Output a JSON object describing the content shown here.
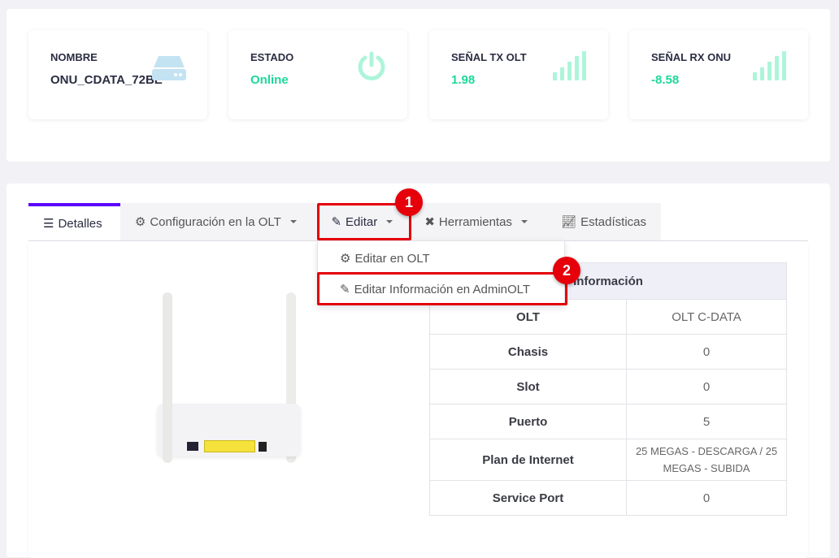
{
  "cards": [
    {
      "label": "NOMBRE",
      "value": "ONU_CDATA_72BE",
      "icon": "server-icon"
    },
    {
      "label": "ESTADO",
      "value": "Online",
      "icon": "power-icon"
    },
    {
      "label": "SEÑAL TX OLT",
      "value": "1.98",
      "icon": "signal-icon"
    },
    {
      "label": "SEÑAL RX ONU",
      "value": "-8.58",
      "icon": "signal-icon"
    }
  ],
  "tabs": [
    {
      "label": "Detalles",
      "icon": "list-icon"
    },
    {
      "label": "Configuración en la OLT",
      "icon": "gear-icon"
    },
    {
      "label": "Editar",
      "icon": "edit-icon"
    },
    {
      "label": "Herramientas",
      "icon": "tools-icon"
    },
    {
      "label": "Estadísticas",
      "icon": "chart-line-icon"
    }
  ],
  "dropdown": [
    {
      "label": "Editar en OLT",
      "icon": "gears-icon"
    },
    {
      "label": "Editar Información en AdminOLT",
      "icon": "edit-icon"
    }
  ],
  "badges": [
    "1",
    "2"
  ],
  "table": {
    "header": "Información",
    "rows": [
      {
        "key": "OLT",
        "value": "OLT C-DATA"
      },
      {
        "key": "Chasis",
        "value": "0"
      },
      {
        "key": "Slot",
        "value": "0"
      },
      {
        "key": "Puerto",
        "value": "5"
      },
      {
        "key": "Plan de Internet",
        "value": "25 MEGAS - DESCARGA / 25 MEGAS - SUBIDA"
      },
      {
        "key": "Service Port",
        "value": "0"
      }
    ]
  },
  "colors": {
    "accent": "#5b00ff",
    "online": "#1dd99a",
    "annotation": "#e5000a"
  }
}
